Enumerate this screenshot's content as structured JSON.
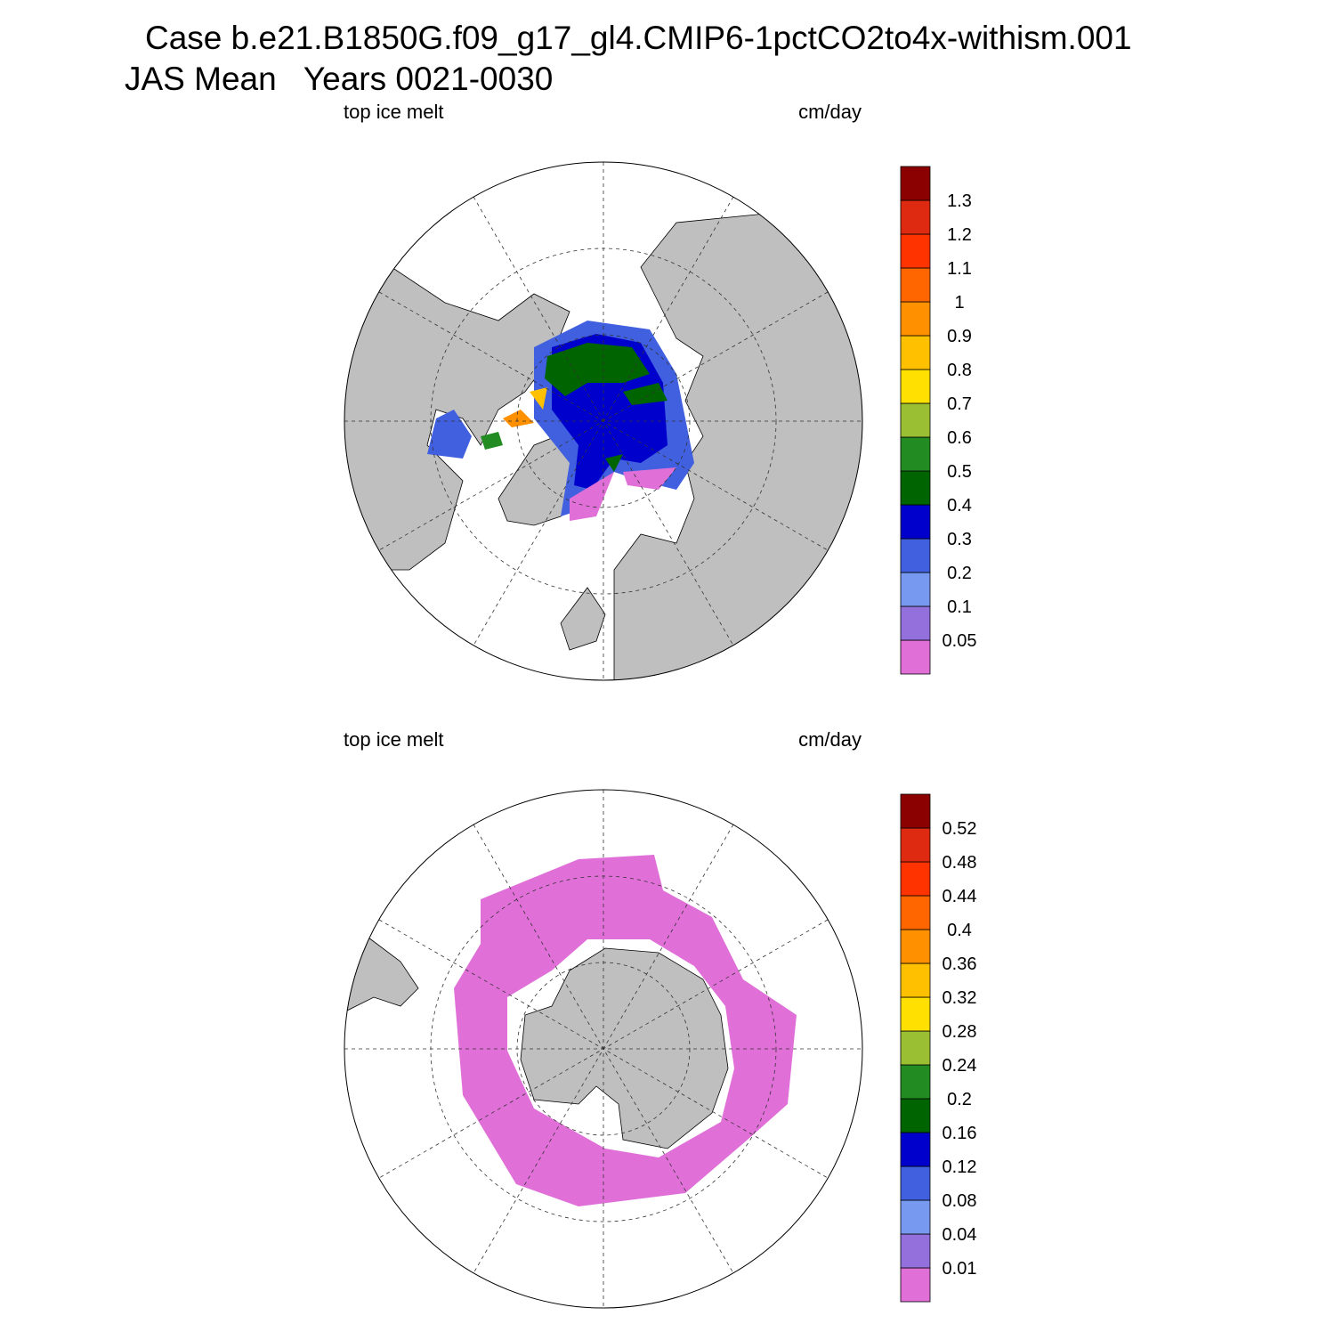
{
  "header": {
    "title": "Case b.e21.B1850G.f09_g17_gl4.CMIP6-1pctCO2to4x-withism.001",
    "subtitle": "JAS Mean   Years 0021-0030"
  },
  "colors": [
    "#e070d8",
    "#9370db",
    "#7799f0",
    "#4060e0",
    "#0000cc",
    "#006400",
    "#228b22",
    "#9abf32",
    "#ffe000",
    "#ffc000",
    "#ff9000",
    "#ff6600",
    "#ff3300",
    "#dd2a10",
    "#8b0000"
  ],
  "panels": [
    {
      "left_label": "top ice melt",
      "right_label": "cm/day",
      "levels": [
        0.05,
        0.1,
        0.2,
        0.3,
        0.4,
        0.5,
        0.6,
        0.7,
        0.8,
        0.9,
        1,
        1.1,
        1.2,
        1.3
      ]
    },
    {
      "left_label": "top ice melt",
      "right_label": "cm/day",
      "levels": [
        0.01,
        0.04,
        0.08,
        0.12,
        0.16,
        0.2,
        0.24,
        0.28,
        0.32,
        0.36,
        0.4,
        0.44,
        0.48,
        0.52
      ]
    }
  ]
}
